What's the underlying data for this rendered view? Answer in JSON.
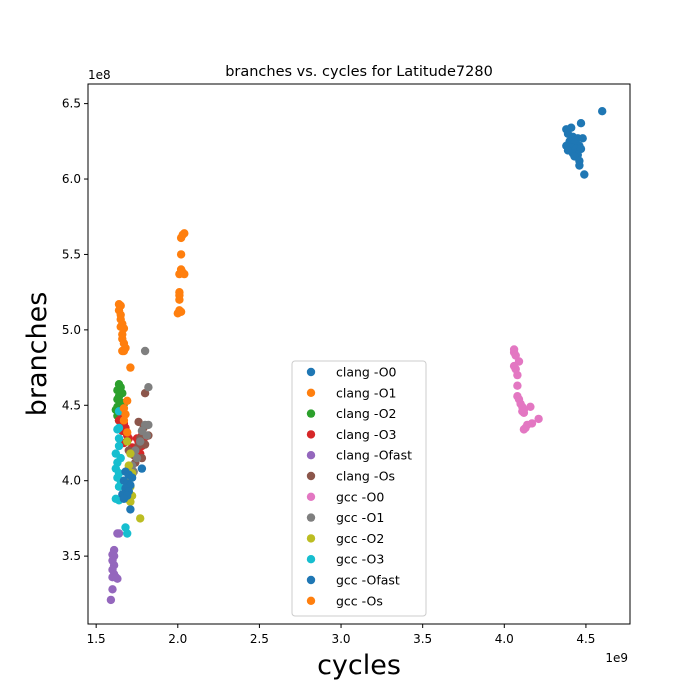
{
  "chart_data": {
    "type": "scatter",
    "title": "branches vs. cycles for Latitude7280",
    "xlabel": "cycles",
    "ylabel": "branches",
    "x_offset_label": "1e9",
    "y_offset_label": "1e8",
    "x_scale": 1000000000,
    "y_scale": 100000000,
    "xlim": [
      1.45,
      4.77
    ],
    "ylim": [
      3.05,
      6.63
    ],
    "xticks": [
      1.5,
      2.0,
      2.5,
      3.0,
      3.5,
      4.0,
      4.5
    ],
    "xtick_labels": [
      "1.5",
      "2.0",
      "2.5",
      "3.0",
      "3.5",
      "4.0",
      "4.5"
    ],
    "yticks": [
      3.5,
      4.0,
      4.5,
      5.0,
      5.5,
      6.0,
      6.5
    ],
    "ytick_labels": [
      "3.5",
      "4.0",
      "4.5",
      "5.0",
      "5.5",
      "6.0",
      "6.5"
    ],
    "grid": false,
    "legend_position": "lower-center",
    "series": [
      {
        "name": "clang -O0",
        "color": "#1f77b4",
        "points": [
          [
            4.6,
            6.45
          ],
          [
            4.38,
            6.33
          ],
          [
            4.41,
            6.34
          ],
          [
            4.47,
            6.37
          ],
          [
            4.39,
            6.3
          ],
          [
            4.42,
            6.28
          ],
          [
            4.45,
            6.27
          ],
          [
            4.48,
            6.27
          ],
          [
            4.4,
            6.25
          ],
          [
            4.43,
            6.24
          ],
          [
            4.46,
            6.22
          ],
          [
            4.38,
            6.22
          ],
          [
            4.41,
            6.21
          ],
          [
            4.44,
            6.2
          ],
          [
            4.47,
            6.2
          ],
          [
            4.39,
            6.19
          ],
          [
            4.42,
            6.17
          ],
          [
            4.45,
            6.16
          ],
          [
            4.43,
            6.15
          ],
          [
            4.46,
            6.12
          ],
          [
            4.46,
            6.09
          ],
          [
            4.49,
            6.03
          ]
        ]
      },
      {
        "name": "clang -O1",
        "color": "#ff7f0e",
        "points": [
          [
            2.04,
            5.64
          ],
          [
            2.03,
            5.63
          ],
          [
            2.02,
            5.61
          ],
          [
            2.02,
            5.5
          ],
          [
            2.02,
            5.4
          ],
          [
            2.03,
            5.38
          ],
          [
            2.01,
            5.37
          ],
          [
            2.04,
            5.37
          ],
          [
            2.01,
            5.25
          ],
          [
            2.01,
            5.23
          ],
          [
            2.01,
            5.2
          ],
          [
            2.01,
            5.13
          ],
          [
            2.02,
            5.12
          ],
          [
            2.0,
            5.11
          ]
        ]
      },
      {
        "name": "clang -O2",
        "color": "#2ca02c",
        "points": [
          [
            1.64,
            4.64
          ],
          [
            1.65,
            4.62
          ],
          [
            1.63,
            4.6
          ],
          [
            1.66,
            4.58
          ],
          [
            1.64,
            4.56
          ],
          [
            1.63,
            4.54
          ],
          [
            1.65,
            4.52
          ],
          [
            1.67,
            4.51
          ],
          [
            1.63,
            4.49
          ],
          [
            1.62,
            4.47
          ],
          [
            1.64,
            4.46
          ],
          [
            1.66,
            4.45
          ],
          [
            1.63,
            4.43
          ],
          [
            1.65,
            4.42
          ],
          [
            1.64,
            4.4
          ]
        ]
      },
      {
        "name": "clang -O3",
        "color": "#d62728",
        "points": [
          [
            1.65,
            4.45
          ],
          [
            1.66,
            4.42
          ],
          [
            1.64,
            4.4
          ],
          [
            1.67,
            4.38
          ],
          [
            1.68,
            4.35
          ],
          [
            1.66,
            4.33
          ],
          [
            1.69,
            4.3
          ],
          [
            1.7,
            4.28
          ],
          [
            1.67,
            4.25
          ],
          [
            1.72,
            4.22
          ],
          [
            1.75,
            4.28
          ],
          [
            1.78,
            4.3
          ],
          [
            1.8,
            4.29
          ],
          [
            1.76,
            4.25
          ],
          [
            1.78,
            4.23
          ],
          [
            1.77,
            4.18
          ]
        ]
      },
      {
        "name": "clang -Ofast",
        "color": "#9467bd",
        "points": [
          [
            1.63,
            3.65
          ],
          [
            1.64,
            3.65
          ],
          [
            1.61,
            3.54
          ],
          [
            1.6,
            3.51
          ],
          [
            1.61,
            3.5
          ],
          [
            1.6,
            3.47
          ],
          [
            1.61,
            3.44
          ],
          [
            1.6,
            3.41
          ],
          [
            1.61,
            3.38
          ],
          [
            1.6,
            3.36
          ],
          [
            1.62,
            3.36
          ],
          [
            1.63,
            3.35
          ],
          [
            1.6,
            3.28
          ],
          [
            1.59,
            3.21
          ]
        ]
      },
      {
        "name": "clang -Os",
        "color": "#8c564b",
        "points": [
          [
            1.8,
            4.58
          ],
          [
            1.76,
            4.39
          ],
          [
            1.79,
            4.35
          ],
          [
            1.82,
            4.3
          ],
          [
            1.77,
            4.28
          ],
          [
            1.8,
            4.24
          ],
          [
            1.76,
            4.23
          ],
          [
            1.7,
            4.2
          ],
          [
            1.73,
            4.17
          ],
          [
            1.78,
            4.15
          ],
          [
            1.74,
            4.12
          ],
          [
            1.7,
            4.08
          ],
          [
            1.72,
            4.04
          ],
          [
            1.68,
            4.0
          ],
          [
            1.7,
            3.96
          ]
        ]
      },
      {
        "name": "gcc -O0",
        "color": "#e377c2",
        "points": [
          [
            4.06,
            4.87
          ],
          [
            4.06,
            4.85
          ],
          [
            4.07,
            4.83
          ],
          [
            4.09,
            4.79
          ],
          [
            4.06,
            4.76
          ],
          [
            4.07,
            4.74
          ],
          [
            4.08,
            4.7
          ],
          [
            4.08,
            4.63
          ],
          [
            4.08,
            4.56
          ],
          [
            4.09,
            4.54
          ],
          [
            4.1,
            4.51
          ],
          [
            4.11,
            4.49
          ],
          [
            4.12,
            4.47
          ],
          [
            4.16,
            4.49
          ],
          [
            4.11,
            4.46
          ],
          [
            4.12,
            4.45
          ],
          [
            4.21,
            4.41
          ],
          [
            4.17,
            4.38
          ],
          [
            4.14,
            4.37
          ],
          [
            4.13,
            4.35
          ],
          [
            4.12,
            4.34
          ]
        ]
      },
      {
        "name": "gcc -O1",
        "color": "#7f7f7f",
        "points": [
          [
            1.8,
            4.86
          ],
          [
            1.82,
            4.62
          ],
          [
            1.8,
            4.37
          ],
          [
            1.82,
            4.37
          ],
          [
            1.78,
            4.33
          ],
          [
            1.81,
            4.3
          ],
          [
            1.77,
            4.26
          ],
          [
            1.74,
            4.2
          ],
          [
            1.75,
            4.15
          ],
          [
            1.72,
            4.1
          ],
          [
            1.73,
            4.06
          ],
          [
            1.7,
            4.02
          ]
        ]
      },
      {
        "name": "gcc -O2",
        "color": "#bcbd22",
        "points": [
          [
            1.69,
            4.26
          ],
          [
            1.71,
            4.18
          ],
          [
            1.7,
            4.1
          ],
          [
            1.72,
            4.05
          ],
          [
            1.69,
            4.0
          ],
          [
            1.71,
            3.96
          ],
          [
            1.7,
            3.93
          ],
          [
            1.72,
            3.9
          ],
          [
            1.69,
            3.88
          ],
          [
            1.71,
            3.86
          ],
          [
            1.77,
            3.75
          ]
        ]
      },
      {
        "name": "gcc -O3",
        "color": "#17becf",
        "points": [
          [
            1.64,
            4.46
          ],
          [
            1.64,
            4.35
          ],
          [
            1.63,
            4.34
          ],
          [
            1.64,
            4.28
          ],
          [
            1.64,
            4.23
          ],
          [
            1.62,
            4.18
          ],
          [
            1.65,
            4.15
          ],
          [
            1.63,
            4.12
          ],
          [
            1.62,
            4.08
          ],
          [
            1.64,
            4.05
          ],
          [
            1.63,
            4.02
          ],
          [
            1.65,
            4.0
          ],
          [
            1.64,
            3.96
          ],
          [
            1.62,
            3.88
          ],
          [
            1.64,
            3.87
          ],
          [
            1.68,
            3.69
          ],
          [
            1.69,
            3.65
          ]
        ]
      },
      {
        "name": "gcc -Ofast",
        "color": "#1f77b4",
        "points": [
          [
            1.78,
            4.08
          ],
          [
            1.68,
            4.06
          ],
          [
            1.7,
            4.04
          ],
          [
            1.72,
            4.02
          ],
          [
            1.67,
            4.0
          ],
          [
            1.69,
            3.98
          ],
          [
            1.71,
            3.97
          ],
          [
            1.68,
            3.95
          ],
          [
            1.7,
            3.93
          ],
          [
            1.66,
            3.91
          ],
          [
            1.69,
            3.9
          ],
          [
            1.67,
            3.88
          ],
          [
            1.71,
            3.81
          ]
        ]
      },
      {
        "name": "gcc -Os",
        "color": "#ff7f0e",
        "points": [
          [
            1.64,
            5.17
          ],
          [
            1.65,
            5.16
          ],
          [
            1.64,
            5.13
          ],
          [
            1.65,
            5.1
          ],
          [
            1.65,
            5.07
          ],
          [
            1.66,
            5.04
          ],
          [
            1.65,
            5.02
          ],
          [
            1.67,
            5.01
          ],
          [
            1.66,
            4.97
          ],
          [
            1.66,
            4.94
          ],
          [
            1.67,
            4.91
          ],
          [
            1.68,
            4.88
          ],
          [
            1.66,
            4.86
          ],
          [
            1.67,
            4.86
          ],
          [
            1.71,
            4.75
          ],
          [
            1.69,
            4.53
          ],
          [
            1.67,
            4.48
          ],
          [
            1.68,
            4.44
          ],
          [
            1.67,
            4.4
          ],
          [
            1.69,
            4.32
          ]
        ]
      }
    ]
  }
}
